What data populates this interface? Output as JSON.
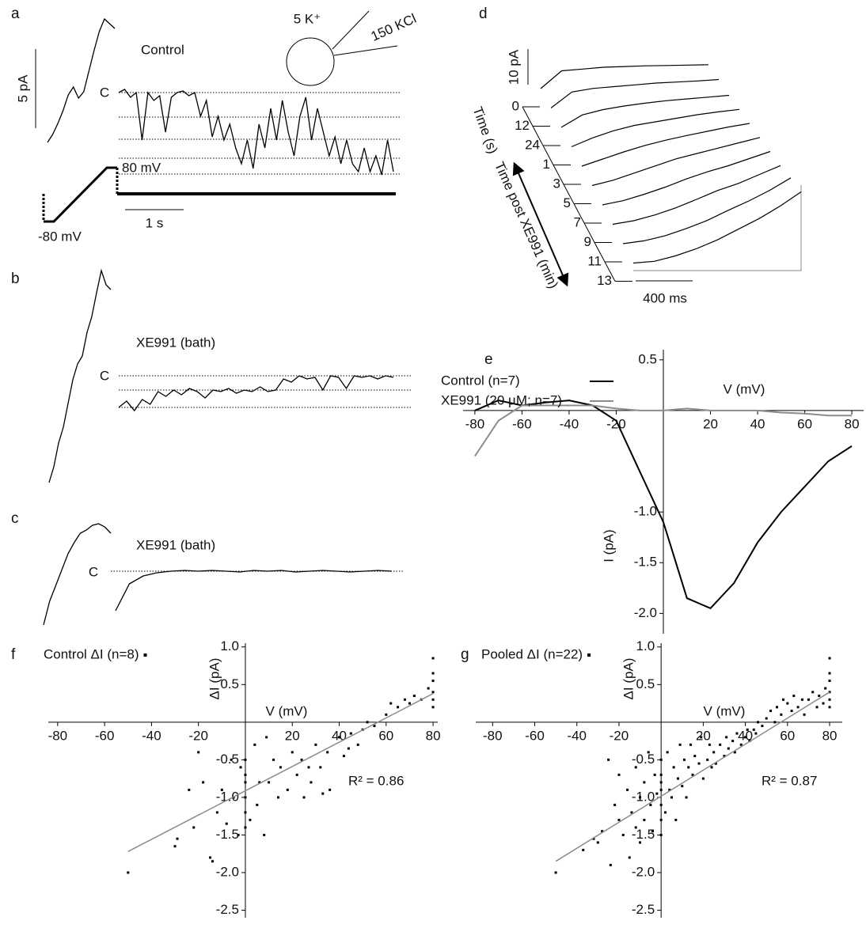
{
  "chart_data": [
    {
      "type": "trace",
      "label": "a",
      "title": "Control",
      "c_label": "C",
      "scale_y": "5 pA",
      "scale_x": "1 s",
      "protocol_high": "80 mV",
      "protocol_low": "-80 mV",
      "bath": "5 K⁺",
      "pipette": "150 KCl",
      "ramp": [
        0,
        0.5,
        1.2,
        2,
        3,
        3.5,
        2.8,
        3.2,
        4.5,
        5.8,
        7,
        7.8,
        7.5,
        7.2
      ],
      "trace": [
        0,
        0.2,
        -0.3,
        0,
        -3,
        0,
        -0.5,
        -0.2,
        -2.5,
        -0.3,
        0,
        0.1,
        -0.2,
        0,
        -1.5,
        -0.5,
        -2.8,
        -1.5,
        -3,
        -2,
        -3.5,
        -4.5,
        -3,
        -4.8,
        -2,
        -3.5,
        -1,
        -3,
        -0.5,
        -2.5,
        -4,
        -1.5,
        -0.3,
        -3,
        -1,
        -2.5,
        -4,
        -2.8,
        -4.5,
        -3,
        -4.5,
        -5,
        -3.5,
        -5,
        -4,
        -5.2,
        -3,
        -5
      ],
      "levels": [
        0,
        -1.55,
        -2.95,
        -4.15,
        -5.15
      ]
    },
    {
      "type": "trace",
      "label": "b",
      "title": "XE991 (bath)",
      "c_label": "C",
      "ramp": [
        0,
        1,
        2.5,
        3.5,
        5,
        6.5,
        7.5,
        8,
        9.5,
        10.5,
        12,
        13.4,
        12.5,
        12.2
      ],
      "trace": [
        -2,
        -1.6,
        -2.2,
        -1.5,
        -1.8,
        -1,
        -1.3,
        -0.9,
        -1.2,
        -0.8,
        -1,
        -1.4,
        -0.9,
        -1,
        -0.8,
        -1.1,
        -0.9,
        -1,
        -0.7,
        -1,
        -0.9,
        -0.2,
        -0.4,
        0,
        -0.2,
        -0.1,
        -0.9,
        0,
        -0.1,
        -0.8,
        0,
        -0.1,
        0,
        -0.2,
        0,
        -0.1
      ],
      "levels": [
        0,
        -0.9,
        -2
      ]
    },
    {
      "type": "trace",
      "label": "c",
      "title": "XE991 (bath)",
      "c_label": "C",
      "ramp": [
        0,
        1.5,
        2.5,
        3.5,
        4.5,
        5.2,
        5.8,
        6,
        6.3,
        6.4,
        6.2,
        5.8
      ],
      "trace": [
        -2.5,
        -0.8,
        -0.3,
        -0.1,
        0,
        0.05,
        0,
        0.05,
        0,
        -0.05,
        0.05,
        0,
        0.05,
        -0.05,
        0,
        0.05,
        0,
        -0.05,
        0,
        0.05,
        0
      ],
      "levels": [
        0
      ]
    },
    {
      "type": "waterfall",
      "label": "d",
      "scale_y": "10 pA",
      "scale_x": "400 ms",
      "axis_label_1": "Time (s)",
      "axis_label_2": "Time post XE991 (min)",
      "traces": [
        {
          "label": "0",
          "values": [
            0,
            5,
            5.5,
            6,
            6.2,
            6.4,
            6.5,
            6.6,
            6.7
          ]
        },
        {
          "label": "12",
          "values": [
            0,
            4.5,
            5.5,
            6,
            6.5,
            7,
            7.3,
            7.6,
            8
          ]
        },
        {
          "label": "24",
          "values": [
            0,
            3.5,
            5,
            6,
            6.8,
            7.5,
            8,
            8.5,
            9
          ]
        },
        {
          "label": "1",
          "values": [
            0,
            2.5,
            4.5,
            6,
            7,
            8,
            9,
            9.8,
            10.5
          ]
        },
        {
          "label": "3",
          "values": [
            0,
            2,
            4,
            5.8,
            7.3,
            8.6,
            9.8,
            11,
            12
          ]
        },
        {
          "label": "5",
          "values": [
            0,
            1.5,
            3.5,
            5.5,
            7.5,
            9,
            10.5,
            12,
            13.5
          ]
        },
        {
          "label": "7",
          "values": [
            0,
            1.2,
            3,
            5,
            7.3,
            9.3,
            11,
            13,
            15
          ]
        },
        {
          "label": "9",
          "values": [
            0,
            1,
            2.6,
            4.6,
            7,
            9.5,
            11.5,
            14,
            16.5
          ]
        },
        {
          "label": "11",
          "values": [
            0,
            0.8,
            2.2,
            4.2,
            6.5,
            9.3,
            12,
            15,
            18.5
          ]
        },
        {
          "label": "13",
          "values": [
            0,
            0.5,
            2,
            4,
            6.5,
            9.5,
            12.5,
            16,
            20
          ]
        }
      ]
    },
    {
      "type": "line",
      "label": "e",
      "x_label": "V (mV)",
      "y_label": "I (pA)",
      "x": [
        -80,
        -70,
        -60,
        -50,
        -40,
        -30,
        -20,
        -10,
        0,
        10,
        20,
        30,
        40,
        50,
        60,
        70,
        80
      ],
      "series": [
        {
          "name": "Control (n=7)",
          "color": "#000000",
          "values": [
            0,
            0.1,
            0.05,
            0.08,
            0.1,
            0.05,
            -0.1,
            -0.6,
            -1.1,
            -1.85,
            -1.95,
            -1.7,
            -1.3,
            -1,
            -0.75,
            -0.5,
            -0.35
          ]
        },
        {
          "name": "XE991 (20 µM; n=7)",
          "color": "#8c8c8c",
          "values": [
            -0.45,
            -0.1,
            0.05,
            0.05,
            0.05,
            0.05,
            0.02,
            0,
            0,
            0.02,
            0,
            0,
            0,
            -0.02,
            -0.03,
            -0.05,
            -0.05
          ]
        }
      ],
      "xlim": [
        -85,
        85
      ],
      "ylim": [
        -2.2,
        0.6
      ],
      "xticks": [
        -80,
        -60,
        -40,
        -20,
        20,
        40,
        60,
        80
      ],
      "yticks": [
        0.5,
        {
          "value": -1,
          "label": "-1.0"
        },
        -1.5,
        {
          "value": -2,
          "label": "-2.0"
        }
      ]
    },
    {
      "type": "scatter",
      "label": "f",
      "x_label": "V (mV)",
      "y_label": "ΔI (pA)",
      "annotation": "R² = 0.86",
      "series": [
        {
          "name": "Control ΔI (n=8)",
          "color": "#000000",
          "x": [
            -50,
            -30,
            -29,
            -24,
            -22,
            -20,
            -18,
            -15,
            -14,
            -12,
            -10,
            -8,
            -6,
            -5,
            -3,
            -2,
            0,
            0,
            0,
            0,
            0,
            0,
            2,
            4,
            5,
            6,
            8,
            9,
            10,
            12,
            14,
            15,
            18,
            20,
            22,
            24,
            25,
            27,
            28,
            30,
            32,
            33,
            35,
            36,
            40,
            42,
            44,
            45,
            48,
            50,
            52,
            55,
            60,
            62,
            65,
            68,
            70,
            72,
            75,
            78,
            80,
            80,
            80,
            80,
            80,
            80
          ],
          "values": [
            -2.0,
            -1.65,
            -1.55,
            -0.9,
            -1.4,
            -0.4,
            -0.8,
            -1.8,
            -1.85,
            -1.2,
            -0.9,
            -1.35,
            -0.5,
            -1.0,
            -1.5,
            -0.6,
            -0.5,
            -0.8,
            -1.0,
            -1.2,
            -1.4,
            -0.7,
            -1.3,
            -0.3,
            -1.1,
            -0.8,
            -1.5,
            -0.2,
            -0.8,
            -0.5,
            -1.0,
            -0.6,
            -0.9,
            -0.4,
            -0.7,
            -0.5,
            -1.0,
            -0.6,
            -0.8,
            -0.3,
            -0.6,
            -0.95,
            -0.4,
            -0.9,
            -0.2,
            -0.45,
            -0.35,
            -0.15,
            -0.3,
            -0.1,
            0.0,
            -0.05,
            0.1,
            0.25,
            0.2,
            0.3,
            0.25,
            0.35,
            0.3,
            0.45,
            0.2,
            0.4,
            0.55,
            0.65,
            0.85,
            0.3
          ]
        }
      ],
      "fit": {
        "color": "#8c8c8c",
        "x": [
          -50,
          80
        ],
        "values": [
          -1.72,
          0.38
        ]
      },
      "xlim": [
        -84,
        82
      ],
      "ylim": [
        -2.6,
        1.05
      ],
      "xticks": [
        -80,
        -60,
        -40,
        -20,
        20,
        40,
        60,
        80
      ],
      "yticks": [
        {
          "value": 1,
          "label": "1.0"
        },
        0.5,
        -0.5,
        {
          "value": -1,
          "label": "-1.0"
        },
        -1.5,
        {
          "value": -2,
          "label": "-2.0"
        },
        -2.5
      ]
    },
    {
      "type": "scatter",
      "label": "g",
      "x_label": "V (mV)",
      "y_label": "ΔI (pA)",
      "annotation": "R² = 0.87",
      "series": [
        {
          "name": "Pooled ΔI (n=22)",
          "color": "#000000",
          "x": [
            -50,
            -37,
            -32,
            -30,
            -28,
            -25,
            -24,
            -22,
            -20,
            -20,
            -18,
            -16,
            -15,
            -14,
            -12,
            -12,
            -10,
            -10,
            -8,
            -8,
            -6,
            -5,
            -4,
            -3,
            -2,
            0,
            0,
            0,
            0,
            0,
            0,
            0,
            2,
            3,
            4,
            5,
            6,
            7,
            8,
            9,
            10,
            11,
            12,
            13,
            14,
            15,
            16,
            18,
            19,
            20,
            22,
            23,
            24,
            25,
            26,
            28,
            30,
            31,
            32,
            34,
            35,
            36,
            38,
            40,
            41,
            42,
            44,
            45,
            46,
            48,
            50,
            52,
            54,
            55,
            57,
            58,
            60,
            62,
            63,
            65,
            67,
            68,
            70,
            72,
            74,
            75,
            77,
            78,
            80,
            80,
            80,
            80,
            80,
            80
          ],
          "values": [
            -2.0,
            -1.7,
            -1.55,
            -1.6,
            -1.45,
            -0.5,
            -1.9,
            -1.1,
            -0.7,
            -1.3,
            -1.5,
            -0.9,
            -1.8,
            -1.2,
            -0.6,
            -1.4,
            -1.0,
            -1.6,
            -0.8,
            -1.3,
            -0.4,
            -1.1,
            -1.45,
            -0.7,
            -0.95,
            -0.5,
            -0.7,
            -0.9,
            -1.1,
            -1.3,
            -1.5,
            -0.8,
            -1.2,
            -0.4,
            -0.9,
            -1.0,
            -0.6,
            -1.3,
            -0.75,
            -0.3,
            -0.85,
            -0.5,
            -1.0,
            -0.6,
            -0.3,
            -0.7,
            -0.45,
            -0.55,
            -0.2,
            -0.75,
            -0.5,
            -0.3,
            -0.6,
            -0.4,
            -0.55,
            -0.3,
            -0.45,
            -0.2,
            -0.35,
            -0.25,
            -0.4,
            -0.15,
            -0.3,
            -0.2,
            -0.1,
            -0.25,
            -0.1,
            -0.15,
            0.0,
            -0.05,
            0.05,
            0.15,
            0.0,
            0.2,
            0.1,
            0.3,
            0.25,
            0.15,
            0.35,
            0.2,
            0.3,
            0.1,
            0.3,
            0.4,
            0.2,
            0.35,
            0.25,
            0.45,
            0.2,
            0.4,
            0.55,
            0.65,
            0.85,
            0.3
          ]
        }
      ],
      "fit": {
        "color": "#8c8c8c",
        "x": [
          -50,
          80
        ],
        "values": [
          -1.85,
          0.4
        ]
      },
      "xlim": [
        -88,
        86
      ],
      "ylim": [
        -2.6,
        1.05
      ],
      "xticks": [
        -80,
        -60,
        -40,
        -20,
        20,
        40,
        60,
        80
      ],
      "yticks": [
        {
          "value": 1,
          "label": "1.0"
        },
        0.5,
        -0.5,
        {
          "value": -1,
          "label": "-1.0"
        },
        -1.5,
        {
          "value": -2,
          "label": "-2.0"
        },
        -2.5
      ]
    }
  ]
}
